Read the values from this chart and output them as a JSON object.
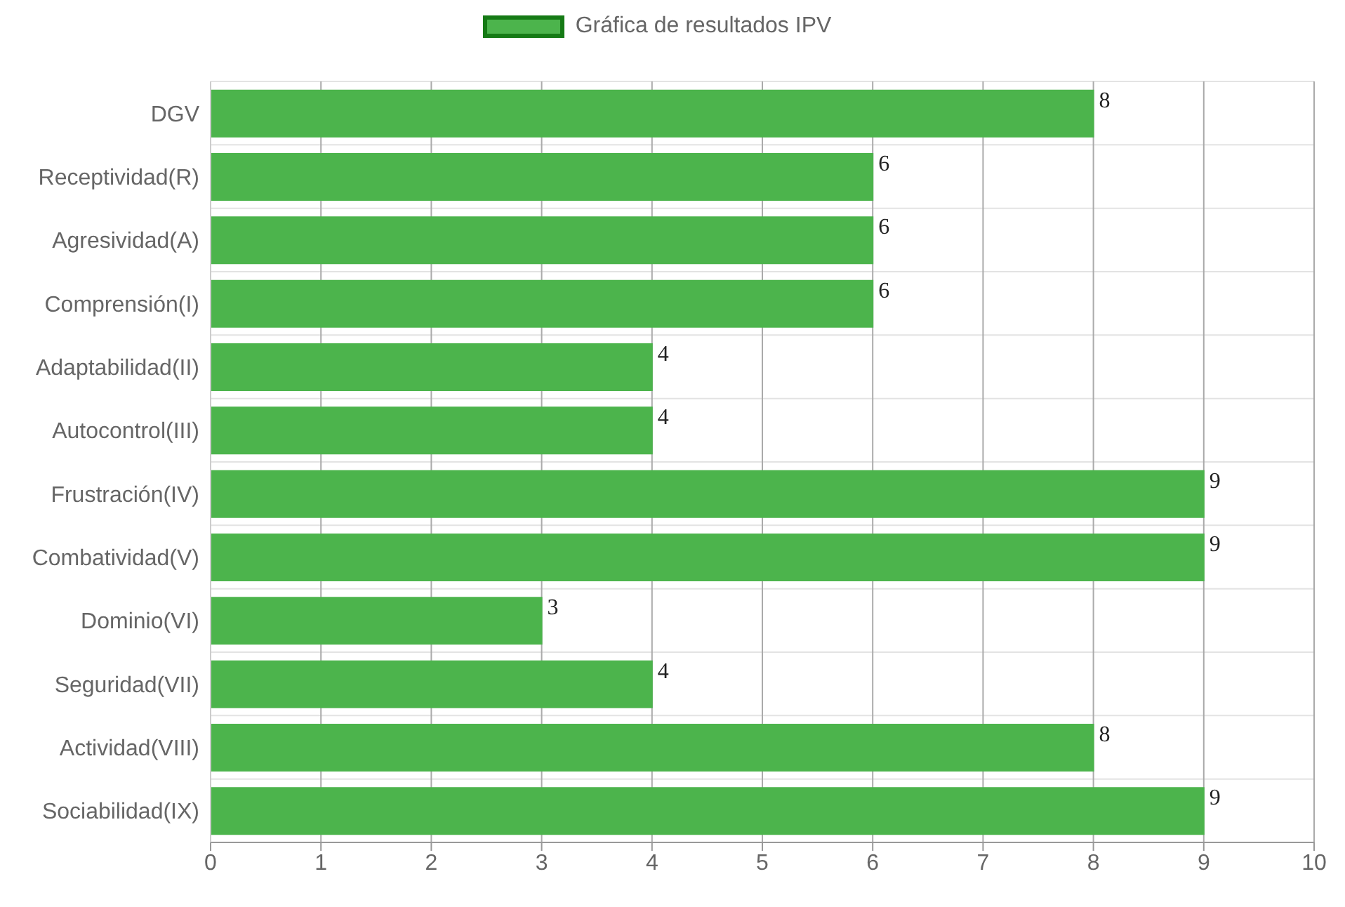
{
  "chart_data": {
    "type": "bar",
    "orientation": "horizontal",
    "categories": [
      "DGV",
      "Receptividad(R)",
      "Agresividad(A)",
      "Comprensión(I)",
      "Adaptabilidad(II)",
      "Autocontrol(III)",
      "Frustración(IV)",
      "Combatividad(V)",
      "Dominio(VI)",
      "Seguridad(VII)",
      "Actividad(VIII)",
      "Sociabilidad(IX)"
    ],
    "series": [
      {
        "name": "Gráfica de resultados IPV",
        "color": "#4cb44c",
        "values": [
          8,
          6,
          6,
          6,
          4,
          4,
          9,
          9,
          3,
          4,
          8,
          9
        ]
      }
    ],
    "xlim": [
      0,
      10
    ],
    "xticks": [
      0,
      1,
      2,
      3,
      4,
      5,
      6,
      7,
      8,
      9,
      10
    ],
    "grid": true,
    "legend": "top",
    "data_labels": true
  }
}
